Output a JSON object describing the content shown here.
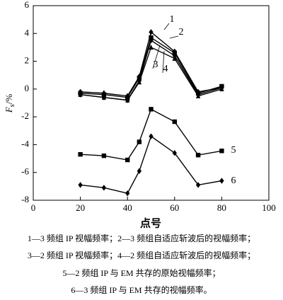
{
  "chart_data": {
    "type": "line",
    "xlabel": "点号",
    "ylabel": {
      "main": "F",
      "sub": "s",
      "unit": "/%"
    },
    "xlim": [
      0,
      100
    ],
    "xticks": [
      0,
      20,
      40,
      60,
      80,
      100
    ],
    "ylim": [
      -8,
      6
    ],
    "yticks": [
      -8,
      -6,
      -4,
      -2,
      0,
      2,
      4,
      6
    ],
    "x": [
      20,
      30,
      40,
      45,
      50,
      60,
      70,
      80
    ],
    "series": [
      {
        "name": "1",
        "color": "#000000",
        "marker": "diamond",
        "values": [
          -0.2,
          -0.3,
          -0.5,
          0.9,
          4.1,
          2.7,
          -0.2,
          0.1
        ]
      },
      {
        "name": "2",
        "color": "#000000",
        "marker": "square",
        "values": [
          -0.3,
          -0.4,
          -0.6,
          0.8,
          3.7,
          2.6,
          -0.3,
          0.2
        ]
      },
      {
        "name": "3",
        "color": "#000000",
        "marker": "triangle",
        "values": [
          -0.4,
          -0.6,
          -0.8,
          0.5,
          3.0,
          2.2,
          -0.5,
          0.0
        ]
      },
      {
        "name": "4",
        "color": "#000000",
        "marker": "diamond",
        "values": [
          -0.4,
          -0.6,
          -0.8,
          0.6,
          3.5,
          2.4,
          -0.4,
          0.1
        ]
      },
      {
        "name": "5",
        "color": "#000000",
        "marker": "square",
        "values": [
          -4.7,
          -4.8,
          -5.1,
          -3.8,
          -1.45,
          -2.35,
          -4.75,
          -4.45
        ]
      },
      {
        "name": "6",
        "color": "#000000",
        "marker": "diamond",
        "values": [
          -6.9,
          -7.1,
          -7.5,
          -5.9,
          -3.4,
          -4.6,
          -6.9,
          -6.6
        ]
      }
    ],
    "caption": [
      "1—3 频组 IP 视幅频率；2—3 频组自适应斩波后的视幅频率；",
      "3—2 频组 IP 视幅频率；4—2 频组自适应斩波后的视幅频率；",
      "5—2 频组 IP 与 EM 共存的原始视幅频率；",
      "6—3 频组 IP 与 EM 共存的视幅频率。"
    ]
  }
}
